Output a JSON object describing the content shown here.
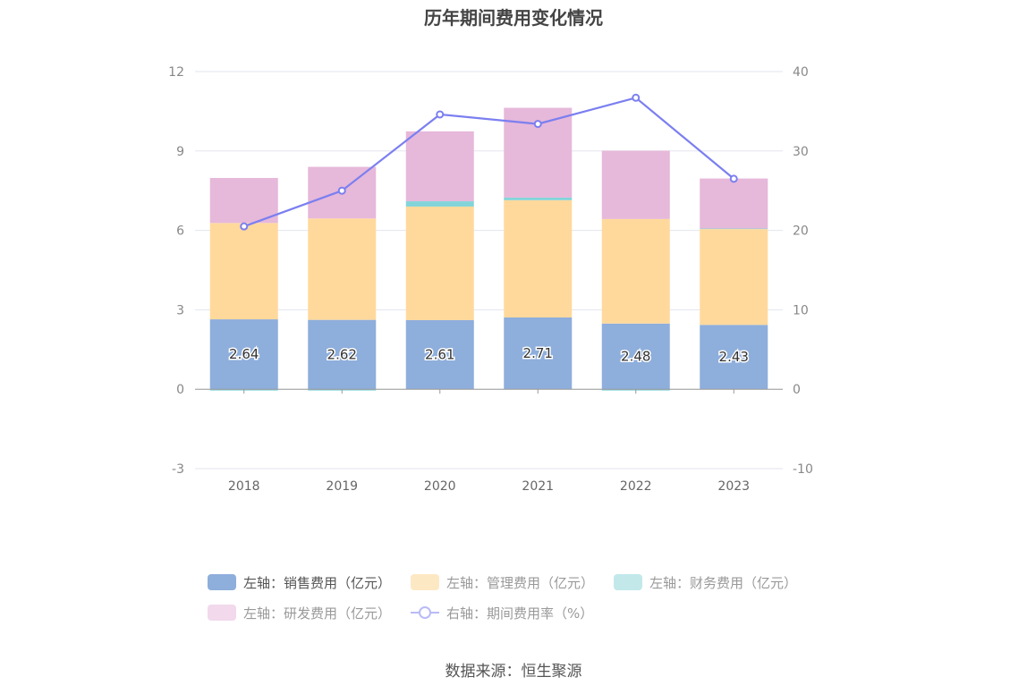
{
  "chart_data": {
    "type": "bar",
    "title": "历年期间费用变化情况",
    "categories": [
      "2018",
      "2019",
      "2020",
      "2021",
      "2022",
      "2023"
    ],
    "stacked": true,
    "left_axis": {
      "ylim": [
        -3,
        12
      ],
      "ticks": [
        "-3",
        "0",
        "3",
        "6",
        "9",
        "12"
      ]
    },
    "right_axis": {
      "ylim": [
        -10,
        40
      ],
      "ticks": [
        "-10",
        "0",
        "10",
        "20",
        "30",
        "40"
      ]
    },
    "series": [
      {
        "name": "左轴：销售费用（亿元）",
        "axis": "left",
        "type": "bar",
        "color": "#8eaedc",
        "values": [
          2.64,
          2.62,
          2.61,
          2.71,
          2.48,
          2.43
        ],
        "labels": [
          "2.64",
          "2.62",
          "2.61",
          "2.71",
          "2.48",
          "2.43"
        ]
      },
      {
        "name": "左轴：管理费用（亿元）",
        "axis": "left",
        "type": "bar",
        "color": "#ffd99c",
        "values": [
          3.64,
          3.83,
          4.29,
          4.43,
          3.95,
          3.62
        ]
      },
      {
        "name": "左轴：财务费用（亿元）",
        "axis": "left",
        "type": "bar",
        "color": "#83d4d9",
        "values": [
          -0.05,
          -0.05,
          0.2,
          0.1,
          -0.05,
          0.02
        ]
      },
      {
        "name": "左轴：研发费用（亿元）",
        "axis": "left",
        "type": "bar",
        "color": "#e6b8da",
        "values": [
          1.7,
          1.95,
          2.64,
          3.39,
          2.58,
          1.89
        ]
      },
      {
        "name": "右轴：期间费用率（%）",
        "axis": "right",
        "type": "line",
        "color": "#7b7ff0",
        "values": [
          20.5,
          25.0,
          34.6,
          33.4,
          36.7,
          26.5
        ]
      }
    ],
    "grid": true,
    "legend_position": "bottom"
  },
  "source": "数据来源：恒生聚源"
}
